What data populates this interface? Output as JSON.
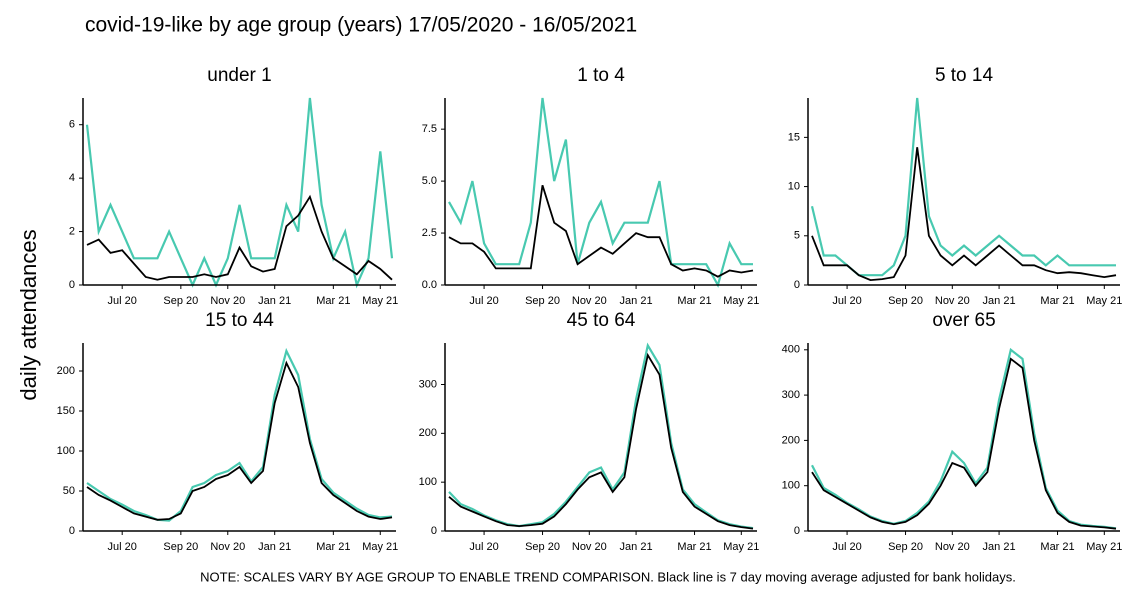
{
  "title": "covid-19-like by age group (years) 17/05/2020 - 16/05/2021",
  "ylabel": "daily attendances",
  "note": "NOTE: SCALES VARY BY AGE GROUP TO ENABLE TREND COMPARISON. Black line is 7 day moving average adjusted for bank holidays.",
  "chart_data": [
    {
      "type": "line",
      "title": "under 1",
      "categories": [
        null,
        null,
        null,
        "Jul 20",
        null,
        null,
        null,
        null,
        "Sep 20",
        null,
        null,
        null,
        "Nov 20",
        null,
        null,
        null,
        "Jan 21",
        null,
        null,
        null,
        null,
        "Mar 21",
        null,
        null,
        null,
        "May 21",
        null
      ],
      "ylim": [
        0,
        7
      ],
      "yticks": [
        0,
        2,
        4,
        6
      ],
      "series": [
        {
          "color": "#48c9b0",
          "values": [
            6,
            2,
            3,
            2,
            1,
            1,
            1,
            2,
            1,
            0,
            1,
            0,
            1,
            3,
            1,
            1,
            1,
            3,
            2,
            7,
            3,
            1,
            2,
            0,
            1,
            5,
            1
          ]
        },
        {
          "color": "#000000",
          "values": [
            1.5,
            1.7,
            1.2,
            1.3,
            0.8,
            0.3,
            0.2,
            0.3,
            0.3,
            0.3,
            0.4,
            0.3,
            0.4,
            1.4,
            0.7,
            0.5,
            0.6,
            2.2,
            2.6,
            3.3,
            2.0,
            1.0,
            0.7,
            0.4,
            0.9,
            0.6,
            0.2
          ]
        }
      ]
    },
    {
      "type": "line",
      "title": "1 to 4",
      "categories": [
        null,
        null,
        null,
        "Jul 20",
        null,
        null,
        null,
        null,
        "Sep 20",
        null,
        null,
        null,
        "Nov 20",
        null,
        null,
        null,
        "Jan 21",
        null,
        null,
        null,
        null,
        "Mar 21",
        null,
        null,
        null,
        "May 21",
        null
      ],
      "ylim": [
        0,
        9
      ],
      "yticks": [
        {
          "value": 0,
          "label": "0.0"
        },
        2.5,
        {
          "value": 5,
          "label": "5.0"
        },
        7.5
      ],
      "series": [
        {
          "color": "#48c9b0",
          "values": [
            4,
            3,
            5,
            2,
            1,
            1,
            1,
            3,
            9,
            5,
            7,
            1,
            3,
            4,
            2,
            3,
            3,
            3,
            5,
            1,
            1,
            1,
            1,
            0,
            2,
            1,
            1
          ]
        },
        {
          "color": "#000000",
          "values": [
            2.3,
            2.0,
            2.0,
            1.6,
            0.8,
            0.8,
            0.8,
            0.8,
            4.8,
            3.0,
            2.6,
            1.0,
            1.4,
            1.8,
            1.5,
            2.0,
            2.5,
            2.3,
            2.3,
            1.0,
            0.7,
            0.8,
            0.7,
            0.4,
            0.7,
            0.6,
            0.7
          ]
        }
      ]
    },
    {
      "type": "line",
      "title": "5 to 14",
      "categories": [
        null,
        null,
        null,
        "Jul 20",
        null,
        null,
        null,
        null,
        "Sep 20",
        null,
        null,
        null,
        "Nov 20",
        null,
        null,
        null,
        "Jan 21",
        null,
        null,
        null,
        null,
        "Mar 21",
        null,
        null,
        null,
        "May 21",
        null
      ],
      "ylim": [
        0,
        19
      ],
      "yticks": [
        0,
        5,
        10,
        15
      ],
      "series": [
        {
          "color": "#48c9b0",
          "values": [
            8,
            3,
            3,
            2,
            1,
            1,
            1,
            2,
            5,
            19,
            7,
            4,
            3,
            4,
            3,
            4,
            5,
            4,
            3,
            3,
            2,
            3,
            2,
            2,
            2,
            2,
            2
          ]
        },
        {
          "color": "#000000",
          "values": [
            5,
            2,
            2,
            2,
            1,
            0.5,
            0.6,
            0.8,
            3,
            14,
            5,
            3,
            2,
            3,
            2,
            3,
            4,
            3,
            2,
            2,
            1.5,
            1.2,
            1.3,
            1.2,
            1.0,
            0.8,
            1.0
          ]
        }
      ]
    },
    {
      "type": "line",
      "title": "15 to 44",
      "categories": [
        null,
        null,
        null,
        "Jul 20",
        null,
        null,
        null,
        null,
        "Sep 20",
        null,
        null,
        null,
        "Nov 20",
        null,
        null,
        null,
        "Jan 21",
        null,
        null,
        null,
        null,
        "Mar 21",
        null,
        null,
        null,
        "May 21",
        null
      ],
      "ylim": [
        0,
        235
      ],
      "yticks": [
        0,
        50,
        100,
        150,
        200
      ],
      "series": [
        {
          "color": "#48c9b0",
          "values": [
            60,
            50,
            40,
            33,
            25,
            20,
            14,
            13,
            25,
            55,
            60,
            70,
            75,
            85,
            62,
            80,
            170,
            225,
            195,
            115,
            65,
            48,
            38,
            28,
            20,
            17,
            18
          ]
        },
        {
          "color": "#000000",
          "values": [
            55,
            45,
            38,
            30,
            22,
            18,
            14,
            15,
            22,
            50,
            55,
            65,
            70,
            80,
            60,
            75,
            160,
            210,
            180,
            110,
            60,
            45,
            35,
            25,
            18,
            15,
            17
          ]
        }
      ]
    },
    {
      "type": "line",
      "title": "45 to 64",
      "categories": [
        null,
        null,
        null,
        "Jul 20",
        null,
        null,
        null,
        null,
        "Sep 20",
        null,
        null,
        null,
        "Nov 20",
        null,
        null,
        null,
        "Jan 21",
        null,
        null,
        null,
        null,
        "Mar 21",
        null,
        null,
        null,
        "May 21",
        null
      ],
      "ylim": [
        0,
        385
      ],
      "yticks": [
        0,
        100,
        200,
        300
      ],
      "series": [
        {
          "color": "#48c9b0",
          "values": [
            80,
            55,
            45,
            32,
            22,
            14,
            10,
            14,
            18,
            35,
            60,
            90,
            120,
            130,
            85,
            120,
            270,
            380,
            340,
            180,
            85,
            55,
            38,
            22,
            14,
            9,
            6
          ]
        },
        {
          "color": "#000000",
          "values": [
            70,
            50,
            40,
            30,
            20,
            12,
            10,
            12,
            15,
            30,
            55,
            85,
            110,
            120,
            80,
            110,
            250,
            360,
            320,
            170,
            80,
            50,
            35,
            20,
            12,
            8,
            5
          ]
        }
      ]
    },
    {
      "type": "line",
      "title": "over 65",
      "categories": [
        null,
        null,
        null,
        "Jul 20",
        null,
        null,
        null,
        null,
        "Sep 20",
        null,
        null,
        null,
        "Nov 20",
        null,
        null,
        null,
        "Jan 21",
        null,
        null,
        null,
        null,
        "Mar 21",
        null,
        null,
        null,
        "May 21",
        null
      ],
      "ylim": [
        0,
        415
      ],
      "yticks": [
        0,
        100,
        200,
        300,
        400
      ],
      "series": [
        {
          "color": "#48c9b0",
          "values": [
            145,
            95,
            80,
            62,
            48,
            32,
            22,
            16,
            22,
            40,
            65,
            110,
            175,
            150,
            105,
            140,
            290,
            400,
            380,
            215,
            95,
            45,
            22,
            14,
            11,
            9,
            6
          ]
        },
        {
          "color": "#000000",
          "values": [
            130,
            90,
            75,
            60,
            45,
            30,
            20,
            15,
            20,
            35,
            60,
            100,
            150,
            140,
            100,
            130,
            270,
            380,
            360,
            200,
            90,
            40,
            20,
            12,
            10,
            8,
            5
          ]
        }
      ]
    }
  ]
}
